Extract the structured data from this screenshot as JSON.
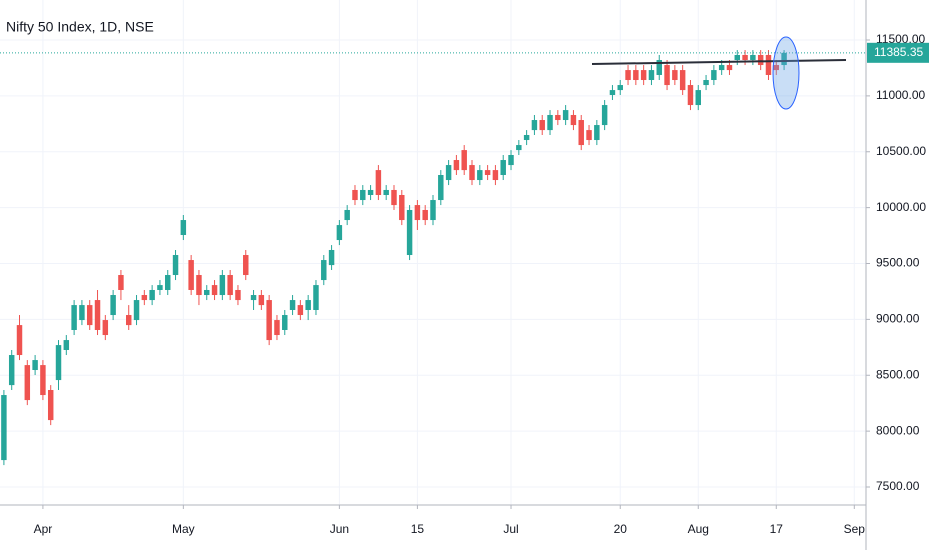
{
  "chart_data": {
    "type": "candlestick",
    "title": "Nifty 50 Index, 1D, NSE",
    "up_color": "#26a69a",
    "down_color": "#ef5350",
    "grid": true,
    "x": [
      0,
      1,
      2,
      3,
      4,
      5,
      6,
      7,
      8,
      9,
      10,
      11,
      12,
      13,
      14,
      15,
      16,
      17,
      18,
      19,
      20,
      21,
      22,
      23,
      24,
      25,
      26,
      27,
      28,
      29,
      30,
      31,
      32,
      33,
      34,
      35,
      36,
      37,
      38,
      39,
      40,
      41,
      42,
      43,
      44,
      45,
      46,
      47,
      48,
      49,
      50,
      51,
      52,
      53,
      54,
      55,
      56,
      57,
      58,
      59,
      60,
      61,
      62,
      63,
      64,
      65,
      66,
      67,
      68,
      69,
      70,
      71,
      72,
      73,
      74,
      75,
      76,
      77,
      78,
      79,
      80,
      81,
      82,
      83,
      84,
      85,
      86,
      87,
      88,
      89,
      90,
      91,
      92,
      93,
      94,
      95,
      96,
      97,
      98,
      99,
      100
    ],
    "open": [
      7741,
      8412,
      8949,
      8591,
      8547,
      8591,
      8368,
      8457,
      8726,
      8905,
      8994,
      9128,
      9173,
      8994,
      9039,
      9397,
      9039,
      8994,
      9218,
      9173,
      9263,
      9263,
      9397,
      9755,
      9531,
      9397,
      9218,
      9307,
      9218,
      9397,
      9263,
      9576,
      9173,
      9218,
      9173,
      8994,
      8905,
      9084,
      9128,
      9084,
      9084,
      9352,
      9486,
      9710,
      9889,
      10158,
      10068,
      10113,
      10336,
      10113,
      10158,
      10113,
      9576,
      10023,
      9979,
      9889,
      10068,
      10247,
      10426,
      10515,
      10381,
      10247,
      10336,
      10336,
      10292,
      10381,
      10515,
      10605,
      10694,
      10784,
      10694,
      10829,
      10784,
      10829,
      10784,
      10694,
      10605,
      10739,
      11008,
      11052,
      11231,
      11231,
      11231,
      11142,
      11187,
      11276,
      11231,
      11231,
      11097,
      10918,
      11097,
      11142,
      11231,
      11276,
      11321,
      11366,
      11321,
      11366,
      11366,
      11276,
      11276
    ],
    "high": [
      8368,
      8726,
      9039,
      8636,
      8681,
      8636,
      8412,
      8815,
      8860,
      9173,
      9173,
      9173,
      9263,
      9039,
      9263,
      9442,
      9128,
      9218,
      9263,
      9307,
      9352,
      9442,
      9621,
      9934,
      9576,
      9442,
      9307,
      9352,
      9442,
      9442,
      9307,
      9621,
      9263,
      9263,
      9218,
      9039,
      9084,
      9218,
      9173,
      9218,
      9352,
      9576,
      9665,
      9889,
      10023,
      10202,
      10202,
      10202,
      10381,
      10202,
      10202,
      10158,
      10023,
      10068,
      10023,
      10113,
      10336,
      10426,
      10471,
      10560,
      10426,
      10381,
      10381,
      10381,
      10471,
      10515,
      10605,
      10694,
      10829,
      10829,
      10873,
      10873,
      10918,
      10873,
      10829,
      10739,
      10784,
      10963,
      11097,
      11142,
      11276,
      11276,
      11276,
      11276,
      11366,
      11321,
      11276,
      11276,
      11142,
      11097,
      11187,
      11276,
      11321,
      11321,
      11410,
      11410,
      11410,
      11410,
      11410,
      11321,
      11410
    ],
    "low": [
      7696,
      8368,
      8636,
      8233,
      8502,
      8278,
      8054,
      8368,
      8681,
      8860,
      8949,
      8905,
      8860,
      8815,
      8994,
      9173,
      8905,
      8949,
      9128,
      9128,
      9218,
      9218,
      9352,
      9710,
      9218,
      9128,
      9173,
      9173,
      9173,
      9173,
      9128,
      9352,
      9084,
      9084,
      8770,
      8815,
      8860,
      9039,
      8994,
      8994,
      9039,
      9307,
      9442,
      9665,
      9844,
      10023,
      10023,
      10068,
      10068,
      10068,
      9979,
      9844,
      9531,
      9800,
      9844,
      9844,
      10023,
      10202,
      10292,
      10292,
      10202,
      10202,
      10247,
      10202,
      10247,
      10336,
      10471,
      10560,
      10650,
      10650,
      10650,
      10739,
      10739,
      10694,
      10515,
      10560,
      10560,
      10694,
      10963,
      11008,
      11097,
      11097,
      11097,
      11097,
      11142,
      11052,
      11097,
      11008,
      10873,
      10873,
      11052,
      11097,
      11187,
      11187,
      11276,
      11276,
      11276,
      11231,
      11142,
      11187,
      11231
    ],
    "close": [
      8323,
      8681,
      8681,
      8278,
      8636,
      8323,
      8099,
      8770,
      8815,
      9128,
      9128,
      8949,
      8905,
      8860,
      9218,
      9263,
      8949,
      9173,
      9173,
      9263,
      9307,
      9397,
      9576,
      9889,
      9263,
      9218,
      9263,
      9218,
      9397,
      9218,
      9173,
      9397,
      9218,
      9128,
      8815,
      8860,
      9039,
      9173,
      9039,
      9173,
      9307,
      9531,
      9621,
      9844,
      9979,
      10068,
      10158,
      10158,
      10113,
      10158,
      10023,
      9889,
      9979,
      9889,
      9889,
      10068,
      10292,
      10381,
      10336,
      10336,
      10247,
      10336,
      10292,
      10247,
      10426,
      10471,
      10560,
      10650,
      10784,
      10694,
      10829,
      10784,
      10873,
      10739,
      10560,
      10605,
      10739,
      10918,
      11052,
      11097,
      11142,
      11142,
      11142,
      11231,
      11321,
      11097,
      11142,
      11052,
      10918,
      11052,
      11142,
      11231,
      11276,
      11231,
      11366,
      11321,
      11366,
      11276,
      11187,
      11231,
      11385
    ],
    "last_price": 11385.35,
    "xlim": [
      -0.5,
      110.5
    ],
    "xticks": [
      {
        "value": 5,
        "label": "Apr"
      },
      {
        "value": 23,
        "label": "May"
      },
      {
        "value": 43,
        "label": "Jun"
      },
      {
        "value": 53,
        "label": "15"
      },
      {
        "value": 65,
        "label": "Jul"
      },
      {
        "value": 79,
        "label": "20"
      },
      {
        "value": 89,
        "label": "Aug"
      },
      {
        "value": 99,
        "label": "17"
      },
      {
        "value": 109,
        "label": "Sep"
      }
    ],
    "ylim": [
      7339,
      11858
    ],
    "yticks": [
      {
        "value": 7500,
        "label": "7500.00"
      },
      {
        "value": 8000,
        "label": "8000.00"
      },
      {
        "value": 8500,
        "label": "8500.00"
      },
      {
        "value": 9000,
        "label": "9000.00"
      },
      {
        "value": 9500,
        "label": "9500.00"
      },
      {
        "value": 10000,
        "label": "10000.00"
      },
      {
        "value": 10500,
        "label": "10500.00"
      },
      {
        "value": 11000,
        "label": "11000.00"
      },
      {
        "value": 11500,
        "label": "11500.00"
      }
    ]
  }
}
